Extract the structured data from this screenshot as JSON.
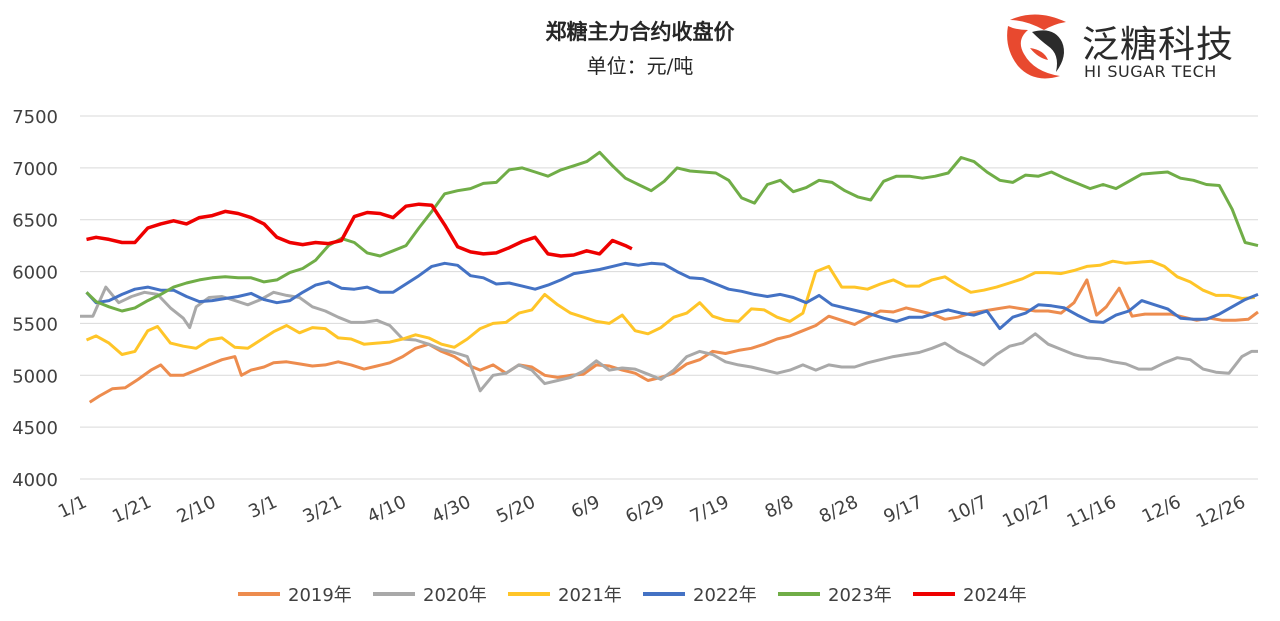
{
  "brand": {
    "name_cn": "泛糖科技",
    "name_en": "HI SUGAR TECH",
    "colors": {
      "red": "#e8492f",
      "dark": "#2b2b2b"
    }
  },
  "chart_data": {
    "type": "line",
    "title": "郑糖主力合约收盘价",
    "subtitle": "单位：元/吨",
    "xlabel": "",
    "ylabel": "",
    "ylim": [
      4000,
      7500
    ],
    "yticks": [
      4000,
      4500,
      5000,
      5500,
      6000,
      6500,
      7000,
      7500
    ],
    "xlim": [
      0,
      365
    ],
    "xticks": [
      {
        "day": 0,
        "label": "1/1"
      },
      {
        "day": 20,
        "label": "1/21"
      },
      {
        "day": 40,
        "label": "2/10"
      },
      {
        "day": 59,
        "label": "3/1"
      },
      {
        "day": 79,
        "label": "3/21"
      },
      {
        "day": 99,
        "label": "4/10"
      },
      {
        "day": 119,
        "label": "4/30"
      },
      {
        "day": 139,
        "label": "5/20"
      },
      {
        "day": 159,
        "label": "6/9"
      },
      {
        "day": 179,
        "label": "6/29"
      },
      {
        "day": 199,
        "label": "7/19"
      },
      {
        "day": 219,
        "label": "8/8"
      },
      {
        "day": 239,
        "label": "8/28"
      },
      {
        "day": 259,
        "label": "9/17"
      },
      {
        "day": 279,
        "label": "10/7"
      },
      {
        "day": 299,
        "label": "10/27"
      },
      {
        "day": 319,
        "label": "11/16"
      },
      {
        "day": 339,
        "label": "12/6"
      },
      {
        "day": 359,
        "label": "12/26"
      }
    ],
    "grid": true,
    "legend_position": "bottom",
    "series": [
      {
        "name": "2019年",
        "color": "#ed8c4e",
        "x": [
          3,
          6,
          10,
          14,
          18,
          22,
          25,
          28,
          32,
          36,
          40,
          44,
          48,
          50,
          53,
          57,
          60,
          64,
          68,
          72,
          76,
          80,
          84,
          88,
          92,
          96,
          100,
          104,
          108,
          112,
          116,
          120,
          124,
          128,
          132,
          136,
          140,
          144,
          148,
          152,
          156,
          160,
          164,
          168,
          172,
          176,
          180,
          184,
          188,
          192,
          196,
          200,
          204,
          208,
          212,
          216,
          220,
          224,
          228,
          232,
          236,
          240,
          244,
          248,
          252,
          256,
          260,
          264,
          268,
          272,
          276,
          280,
          284,
          288,
          292,
          296,
          300,
          304,
          308,
          312,
          315,
          318,
          322,
          326,
          330,
          334,
          338,
          342,
          346,
          350,
          354,
          358,
          362,
          365
        ],
        "values": [
          4740,
          4800,
          4870,
          4880,
          4960,
          5050,
          5100,
          5000,
          5000,
          5050,
          5100,
          5150,
          5180,
          5000,
          5050,
          5080,
          5120,
          5130,
          5110,
          5090,
          5100,
          5130,
          5100,
          5060,
          5090,
          5120,
          5180,
          5260,
          5300,
          5230,
          5180,
          5100,
          5050,
          5100,
          5020,
          5100,
          5080,
          5000,
          4980,
          5000,
          5010,
          5100,
          5090,
          5050,
          5020,
          4950,
          4980,
          5020,
          5110,
          5150,
          5230,
          5210,
          5240,
          5260,
          5300,
          5350,
          5380,
          5430,
          5480,
          5570,
          5530,
          5490,
          5560,
          5620,
          5610,
          5650,
          5620,
          5590,
          5540,
          5560,
          5600,
          5620,
          5640,
          5660,
          5640,
          5620,
          5620,
          5600,
          5700,
          5920,
          5580,
          5660,
          5840,
          5570,
          5590,
          5590,
          5590,
          5560,
          5530,
          5550,
          5530,
          5530,
          5540,
          5610
        ]
      },
      {
        "name": "2020年",
        "color": "#a9a9a9",
        "x": [
          0,
          4,
          8,
          12,
          16,
          20,
          24,
          28,
          32,
          34,
          36,
          40,
          44,
          48,
          52,
          56,
          60,
          64,
          68,
          72,
          76,
          80,
          84,
          88,
          92,
          96,
          100,
          104,
          108,
          112,
          116,
          120,
          124,
          128,
          132,
          136,
          140,
          144,
          148,
          152,
          156,
          160,
          164,
          168,
          172,
          176,
          180,
          184,
          188,
          192,
          196,
          200,
          204,
          208,
          212,
          216,
          220,
          224,
          228,
          232,
          236,
          240,
          244,
          248,
          252,
          256,
          260,
          264,
          268,
          272,
          276,
          280,
          284,
          288,
          292,
          296,
          300,
          304,
          308,
          312,
          316,
          320,
          324,
          328,
          332,
          336,
          340,
          344,
          348,
          352,
          356,
          360,
          363,
          365
        ],
        "values": [
          5570,
          5570,
          5850,
          5700,
          5760,
          5800,
          5780,
          5650,
          5550,
          5460,
          5660,
          5750,
          5760,
          5720,
          5680,
          5730,
          5800,
          5770,
          5750,
          5660,
          5620,
          5560,
          5510,
          5510,
          5530,
          5480,
          5350,
          5340,
          5300,
          5250,
          5220,
          5180,
          4850,
          5000,
          5020,
          5100,
          5050,
          4920,
          4950,
          4980,
          5040,
          5140,
          5050,
          5070,
          5060,
          5010,
          4960,
          5050,
          5180,
          5230,
          5200,
          5130,
          5100,
          5080,
          5050,
          5020,
          5050,
          5100,
          5050,
          5100,
          5080,
          5080,
          5120,
          5150,
          5180,
          5200,
          5220,
          5260,
          5310,
          5230,
          5170,
          5100,
          5200,
          5280,
          5310,
          5400,
          5300,
          5250,
          5200,
          5170,
          5160,
          5130,
          5110,
          5060,
          5060,
          5120,
          5170,
          5150,
          5060,
          5030,
          5020,
          5180,
          5230,
          5230
        ]
      },
      {
        "name": "2021年",
        "color": "#ffc528",
        "x": [
          2,
          5,
          9,
          13,
          17,
          21,
          24,
          28,
          32,
          36,
          40,
          44,
          48,
          52,
          56,
          60,
          64,
          68,
          72,
          76,
          80,
          84,
          88,
          92,
          96,
          100,
          104,
          108,
          112,
          116,
          120,
          124,
          128,
          132,
          136,
          140,
          144,
          148,
          152,
          156,
          160,
          164,
          168,
          172,
          176,
          180,
          184,
          188,
          192,
          196,
          200,
          204,
          208,
          212,
          216,
          220,
          224,
          228,
          232,
          236,
          240,
          244,
          248,
          252,
          256,
          260,
          264,
          268,
          272,
          276,
          280,
          284,
          288,
          292,
          296,
          300,
          304,
          308,
          312,
          316,
          320,
          324,
          328,
          332,
          336,
          340,
          344,
          348,
          352,
          356,
          360,
          364
        ],
        "values": [
          5340,
          5380,
          5310,
          5200,
          5230,
          5430,
          5470,
          5310,
          5280,
          5260,
          5340,
          5360,
          5270,
          5260,
          5340,
          5420,
          5480,
          5410,
          5460,
          5450,
          5360,
          5350,
          5300,
          5310,
          5320,
          5350,
          5390,
          5360,
          5300,
          5270,
          5350,
          5450,
          5500,
          5510,
          5600,
          5630,
          5780,
          5680,
          5600,
          5560,
          5520,
          5500,
          5580,
          5430,
          5400,
          5460,
          5560,
          5600,
          5700,
          5570,
          5530,
          5520,
          5640,
          5630,
          5560,
          5520,
          5600,
          6000,
          6050,
          5850,
          5850,
          5830,
          5880,
          5920,
          5860,
          5860,
          5920,
          5950,
          5870,
          5800,
          5820,
          5850,
          5890,
          5930,
          5990,
          5990,
          5980,
          6010,
          6050,
          6060,
          6100,
          6080,
          6090,
          6100,
          6050,
          5950,
          5900,
          5820,
          5770,
          5770,
          5740,
          5750
        ]
      },
      {
        "name": "2022年",
        "color": "#4472c4",
        "x": [
          2,
          5,
          9,
          13,
          17,
          21,
          25,
          29,
          33,
          37,
          41,
          45,
          49,
          53,
          57,
          61,
          65,
          69,
          73,
          77,
          81,
          85,
          89,
          93,
          97,
          101,
          105,
          109,
          113,
          117,
          121,
          125,
          129,
          133,
          137,
          141,
          145,
          149,
          153,
          157,
          161,
          165,
          169,
          173,
          177,
          181,
          185,
          189,
          193,
          197,
          201,
          205,
          209,
          213,
          217,
          221,
          225,
          229,
          233,
          237,
          241,
          245,
          249,
          253,
          257,
          261,
          265,
          269,
          273,
          277,
          281,
          285,
          289,
          293,
          297,
          301,
          305,
          309,
          313,
          317,
          321,
          325,
          329,
          333,
          337,
          341,
          345,
          349,
          353,
          357,
          361,
          365
        ],
        "values": [
          5800,
          5700,
          5720,
          5780,
          5830,
          5850,
          5820,
          5820,
          5760,
          5710,
          5720,
          5740,
          5760,
          5790,
          5730,
          5700,
          5720,
          5800,
          5870,
          5900,
          5840,
          5830,
          5850,
          5800,
          5800,
          5880,
          5960,
          6050,
          6080,
          6060,
          5960,
          5940,
          5880,
          5890,
          5860,
          5830,
          5870,
          5920,
          5980,
          6000,
          6020,
          6050,
          6080,
          6060,
          6080,
          6070,
          6000,
          5940,
          5930,
          5880,
          5830,
          5810,
          5780,
          5760,
          5780,
          5750,
          5700,
          5770,
          5680,
          5650,
          5620,
          5590,
          5550,
          5520,
          5560,
          5560,
          5600,
          5630,
          5600,
          5580,
          5620,
          5450,
          5560,
          5600,
          5680,
          5670,
          5650,
          5580,
          5520,
          5510,
          5580,
          5620,
          5720,
          5680,
          5640,
          5550,
          5540,
          5540,
          5590,
          5660,
          5730,
          5780
        ]
      },
      {
        "name": "2023年",
        "color": "#70ad47",
        "x": [
          2,
          5,
          9,
          13,
          17,
          21,
          25,
          29,
          33,
          37,
          41,
          45,
          49,
          53,
          57,
          61,
          65,
          69,
          73,
          77,
          81,
          85,
          89,
          93,
          97,
          101,
          105,
          109,
          113,
          117,
          121,
          125,
          129,
          133,
          137,
          141,
          145,
          149,
          153,
          157,
          161,
          165,
          169,
          173,
          177,
          181,
          185,
          189,
          193,
          197,
          201,
          205,
          209,
          213,
          217,
          221,
          225,
          229,
          233,
          237,
          241,
          245,
          249,
          253,
          257,
          261,
          265,
          269,
          273,
          277,
          281,
          285,
          289,
          293,
          297,
          301,
          305,
          309,
          313,
          317,
          321,
          325,
          329,
          333,
          337,
          341,
          345,
          349,
          353,
          357,
          361,
          365
        ],
        "values": [
          5800,
          5710,
          5660,
          5620,
          5650,
          5720,
          5780,
          5850,
          5890,
          5920,
          5940,
          5950,
          5940,
          5940,
          5900,
          5920,
          5990,
          6030,
          6110,
          6250,
          6320,
          6280,
          6180,
          6150,
          6200,
          6250,
          6420,
          6580,
          6750,
          6780,
          6800,
          6850,
          6860,
          6980,
          7000,
          6960,
          6920,
          6980,
          7020,
          7060,
          7150,
          7020,
          6900,
          6840,
          6780,
          6870,
          7000,
          6970,
          6960,
          6950,
          6880,
          6710,
          6660,
          6840,
          6880,
          6770,
          6810,
          6880,
          6860,
          6780,
          6720,
          6690,
          6870,
          6920,
          6920,
          6900,
          6920,
          6950,
          7100,
          7060,
          6960,
          6880,
          6860,
          6930,
          6920,
          6960,
          6900,
          6850,
          6800,
          6840,
          6800,
          6870,
          6940,
          6950,
          6960,
          6900,
          6880,
          6840,
          6830,
          6600,
          6280,
          6250
        ]
      },
      {
        "name": "2024年",
        "color": "#ee0000",
        "x": [
          2,
          5,
          9,
          13,
          17,
          21,
          25,
          29,
          33,
          37,
          41,
          45,
          49,
          53,
          57,
          61,
          65,
          69,
          73,
          77,
          81,
          85,
          89,
          93,
          97,
          101,
          105,
          109,
          113,
          117,
          121,
          125,
          129,
          133,
          137,
          141,
          145,
          149,
          153,
          157,
          161,
          165,
          169,
          171
        ],
        "values": [
          6310,
          6330,
          6310,
          6280,
          6280,
          6420,
          6460,
          6490,
          6460,
          6520,
          6540,
          6580,
          6560,
          6520,
          6460,
          6330,
          6280,
          6260,
          6280,
          6270,
          6300,
          6530,
          6570,
          6560,
          6520,
          6630,
          6650,
          6640,
          6450,
          6240,
          6190,
          6170,
          6180,
          6230,
          6290,
          6330,
          6170,
          6150,
          6160,
          6200,
          6170,
          6300,
          6250,
          6220
        ]
      }
    ]
  }
}
